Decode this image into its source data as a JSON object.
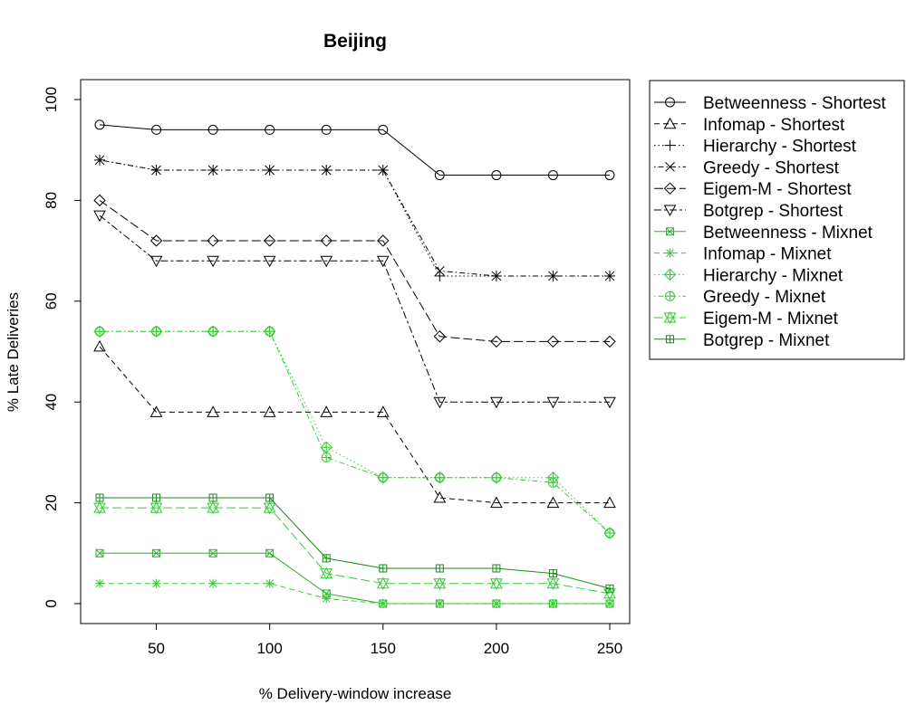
{
  "chart_data": {
    "type": "line",
    "title": "Beijing",
    "xlabel": "% Delivery-window increase",
    "ylabel": "% Late Deliveries",
    "x": [
      25,
      50,
      75,
      100,
      125,
      150,
      175,
      200,
      225,
      250
    ],
    "xlim": [
      25,
      250
    ],
    "ylim": [
      0,
      100
    ],
    "xticks": [
      50,
      100,
      150,
      200,
      250
    ],
    "yticks": [
      0,
      20,
      40,
      60,
      80,
      100
    ],
    "grid": false,
    "legend_position": "right",
    "series": [
      {
        "name": "Betweenness - Shortest",
        "color": "#000000",
        "marker": "circle",
        "dash": "solid",
        "values": [
          95,
          94,
          94,
          94,
          94,
          94,
          85,
          85,
          85,
          85
        ]
      },
      {
        "name": "Infomap - Shortest",
        "color": "#000000",
        "marker": "triangle",
        "dash": "dashed",
        "values": [
          51,
          38,
          38,
          38,
          38,
          38,
          21,
          20,
          20,
          20
        ]
      },
      {
        "name": "Hierarchy - Shortest",
        "color": "#000000",
        "marker": "plus",
        "dash": "dotted",
        "values": [
          88,
          86,
          86,
          86,
          86,
          86,
          65,
          65,
          65,
          65
        ]
      },
      {
        "name": "Greedy - Shortest",
        "color": "#000000",
        "marker": "x",
        "dash": "dotdash",
        "values": [
          88,
          86,
          86,
          86,
          86,
          86,
          66,
          65,
          65,
          65
        ]
      },
      {
        "name": "Eigem-M - Shortest",
        "color": "#000000",
        "marker": "diamond",
        "dash": "longdash",
        "values": [
          80,
          72,
          72,
          72,
          72,
          72,
          53,
          52,
          52,
          52
        ]
      },
      {
        "name": "Botgrep - Shortest",
        "color": "#000000",
        "marker": "triangle-down",
        "dash": "twodash",
        "values": [
          77,
          68,
          68,
          68,
          68,
          68,
          40,
          40,
          40,
          40
        ]
      },
      {
        "name": "Betweenness - Mixnet",
        "color": "#22b622",
        "marker": "square-x",
        "dash": "solid",
        "values": [
          10,
          10,
          10,
          10,
          2,
          0,
          0,
          0,
          0,
          0
        ]
      },
      {
        "name": "Infomap - Mixnet",
        "color": "#33cc33",
        "marker": "asterisk",
        "dash": "dashed",
        "values": [
          4,
          4,
          4,
          4,
          1,
          0,
          0,
          0,
          0,
          0
        ]
      },
      {
        "name": "Hierarchy - Mixnet",
        "color": "#33cc33",
        "marker": "diamond-plus",
        "dash": "dotted",
        "values": [
          54,
          54,
          54,
          54,
          31,
          25,
          25,
          25,
          25,
          14
        ]
      },
      {
        "name": "Greedy - Mixnet",
        "color": "#33cc33",
        "marker": "circle-plus",
        "dash": "dotdash",
        "values": [
          54,
          54,
          54,
          54,
          29,
          25,
          25,
          25,
          24,
          14
        ]
      },
      {
        "name": "Eigem-M - Mixnet",
        "color": "#33cc33",
        "marker": "star-of-david",
        "dash": "longdash",
        "values": [
          19,
          19,
          19,
          19,
          6,
          4,
          4,
          4,
          4,
          2
        ]
      },
      {
        "name": "Botgrep - Mixnet",
        "color": "#1a8a1a",
        "marker": "square-plus",
        "dash": "solid",
        "values": [
          21,
          21,
          21,
          21,
          9,
          7,
          7,
          7,
          6,
          3
        ]
      }
    ]
  }
}
